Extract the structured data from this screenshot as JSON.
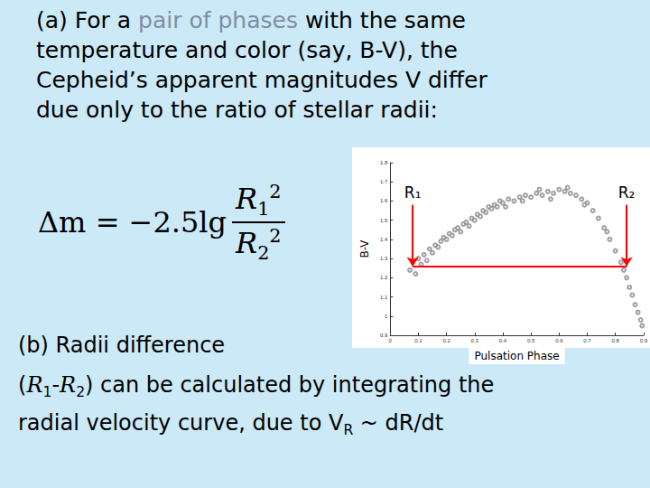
{
  "slide": {
    "background": "#cce9f7",
    "part_a": [
      [
        {
          "t": "(a) For a "
        },
        {
          "t": "pair of phases",
          "highlight": true
        },
        {
          "t": " with the same"
        }
      ],
      [
        {
          "t": "temperature and color (say, B-V), the"
        }
      ],
      [
        {
          "t": "Cepheid’s apparent magnitudes V differ"
        }
      ],
      [
        {
          "t": "due only to the ratio of stellar radii:"
        }
      ]
    ],
    "formula": {
      "lhs": "Δm = −2.5lg",
      "numerator": [
        {
          "t": "R",
          "italic": true
        },
        {
          "t": "1",
          "sub": true
        },
        {
          "t": "2",
          "sup": true
        }
      ],
      "denominator": [
        {
          "t": "R",
          "italic": true
        },
        {
          "t": "2",
          "sub": true
        },
        {
          "t": "2",
          "sup": true
        }
      ]
    },
    "part_b": [
      [
        {
          "t": "(b) Radii difference"
        }
      ],
      [
        {
          "t": "("
        },
        {
          "t": "R",
          "italic": true
        },
        {
          "t": "1",
          "sub": true
        },
        {
          "t": "-"
        },
        {
          "t": "R",
          "italic": true
        },
        {
          "t": "2",
          "sub": true
        },
        {
          "t": ") can be calculated by integrating the"
        }
      ],
      [
        {
          "t": "radial velocity curve, due to V"
        },
        {
          "t": "R",
          "sub": true
        },
        {
          "t": " ~ dR/dt"
        }
      ]
    ]
  },
  "chart_data": {
    "type": "scatter",
    "x_label": "Pulsation Phase",
    "y_label": "B-V",
    "x": [
      0.07,
      0.08,
      0.09,
      0.1,
      0.11,
      0.12,
      0.13,
      0.14,
      0.15,
      0.16,
      0.17,
      0.18,
      0.19,
      0.2,
      0.21,
      0.22,
      0.23,
      0.24,
      0.25,
      0.26,
      0.27,
      0.28,
      0.29,
      0.3,
      0.31,
      0.32,
      0.33,
      0.34,
      0.35,
      0.36,
      0.37,
      0.38,
      0.39,
      0.4,
      0.42,
      0.44,
      0.46,
      0.48,
      0.5,
      0.52,
      0.54,
      0.56,
      0.58,
      0.6,
      0.62,
      0.64,
      0.66,
      0.68,
      0.7,
      0.72,
      0.74,
      0.76,
      0.78,
      0.8,
      0.82,
      0.83,
      0.84,
      0.85,
      0.86,
      0.87,
      0.88,
      0.89,
      0.895,
      0.41,
      0.47,
      0.53,
      0.57,
      0.63,
      0.69,
      0.77
    ],
    "values": [
      1.24,
      1.28,
      1.22,
      1.3,
      1.27,
      1.32,
      1.29,
      1.35,
      1.33,
      1.37,
      1.36,
      1.39,
      1.41,
      1.4,
      1.43,
      1.42,
      1.45,
      1.46,
      1.44,
      1.48,
      1.49,
      1.47,
      1.51,
      1.5,
      1.53,
      1.52,
      1.55,
      1.54,
      1.57,
      1.56,
      1.58,
      1.57,
      1.6,
      1.59,
      1.61,
      1.6,
      1.62,
      1.63,
      1.62,
      1.64,
      1.63,
      1.65,
      1.64,
      1.66,
      1.65,
      1.64,
      1.63,
      1.61,
      1.59,
      1.55,
      1.51,
      1.46,
      1.4,
      1.34,
      1.28,
      1.24,
      1.2,
      1.15,
      1.11,
      1.06,
      1.02,
      0.98,
      0.95,
      1.57,
      1.6,
      1.66,
      1.61,
      1.67,
      1.58,
      1.44
    ],
    "color": "#8a8a8a",
    "marker": "circle_open",
    "xlim": [
      0,
      0.9
    ],
    "xticks": [
      0,
      0.1,
      0.2,
      0.3,
      0.4,
      0.5,
      0.6,
      0.7,
      0.8,
      0.9
    ],
    "ylim": [
      0.9,
      1.8
    ],
    "yticks": [
      0.9,
      1,
      1.1,
      1.2,
      1.3,
      1.4,
      1.5,
      1.6,
      1.7,
      1.8
    ],
    "grid": false,
    "reference_line": {
      "y": 1.26,
      "x": [
        0.08,
        0.84
      ],
      "color": "#ff0000"
    },
    "markers": [
      {
        "label": "R₁",
        "x": 0.08,
        "y_top": 1.58
      },
      {
        "label": "R₂",
        "x": 0.84,
        "y_top": 1.58
      }
    ]
  }
}
